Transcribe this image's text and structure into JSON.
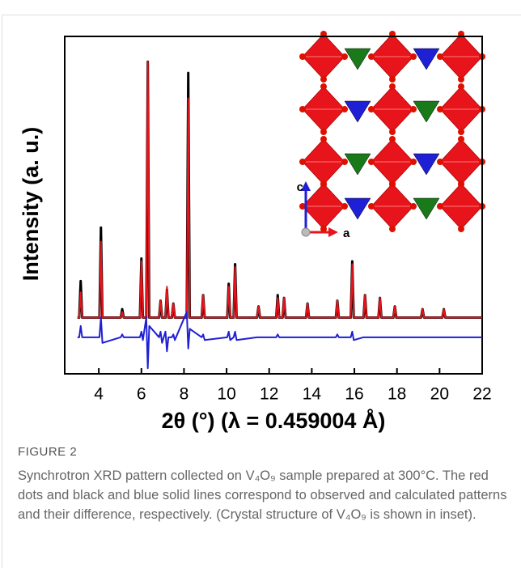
{
  "chart_data": {
    "type": "line",
    "y_label": "Intensity (a. u.)",
    "x_label": "2θ (°) (λ = 0.459004 Å)",
    "annotations": [
      "c",
      "a"
    ],
    "xlim": [
      2.4,
      22
    ],
    "ylim": [
      -20,
      100
    ],
    "xticks": [
      4,
      6,
      8,
      10,
      12,
      14,
      16,
      18,
      20,
      22
    ],
    "x": [
      3.0,
      3.08,
      3.15,
      3.22,
      4.03,
      4.1,
      4.17,
      5.03,
      5.1,
      5.17,
      5.93,
      6.0,
      6.07,
      6.23,
      6.3,
      6.37,
      6.83,
      6.9,
      6.97,
      7.13,
      7.2,
      7.27,
      7.43,
      7.5,
      7.57,
      8.13,
      8.2,
      8.27,
      8.83,
      8.9,
      8.97,
      10.03,
      10.1,
      10.17,
      10.33,
      10.4,
      10.47,
      11.43,
      11.5,
      11.57,
      12.33,
      12.4,
      12.47,
      12.63,
      12.7,
      12.77,
      13.73,
      13.8,
      13.87,
      15.13,
      15.2,
      15.27,
      15.83,
      15.9,
      15.97,
      16.43,
      16.5,
      16.57,
      17.13,
      17.2,
      17.27,
      17.83,
      17.9,
      17.97,
      19.13,
      19.2,
      19.27,
      20.13,
      20.2,
      20.27,
      22.0
    ],
    "series": [
      {
        "color": "#000000",
        "values": [
          0,
          0,
          13,
          0,
          0,
          32,
          0,
          0,
          3,
          0,
          0,
          21,
          0,
          0,
          91,
          0,
          0,
          6,
          0,
          0,
          10,
          0,
          0,
          5,
          0,
          0,
          87,
          0,
          0,
          8,
          0,
          0,
          12,
          0,
          0,
          19,
          0,
          0,
          4,
          0,
          0,
          8,
          0,
          0,
          7,
          0,
          0,
          5,
          0,
          0,
          6,
          0,
          0,
          20,
          0,
          0,
          8,
          0,
          0,
          7,
          0,
          0,
          4,
          0,
          0,
          3,
          0,
          0,
          3,
          0,
          0
        ]
      },
      {
        "color": "#e8141b",
        "values": [
          0,
          0,
          9,
          0,
          0,
          27,
          0,
          0,
          2,
          0,
          0,
          20,
          0,
          0,
          91,
          0,
          0,
          6,
          0,
          0,
          11,
          0,
          0,
          5,
          0,
          0,
          78,
          0,
          0,
          8,
          0,
          0,
          11,
          0,
          0,
          18,
          0,
          0,
          4,
          0,
          0,
          7,
          0,
          0,
          7,
          0,
          0,
          5,
          0,
          0,
          6,
          0,
          0,
          19,
          0,
          0,
          8,
          0,
          0,
          7,
          0,
          0,
          4,
          0,
          0,
          3,
          0,
          0,
          3,
          0,
          0
        ]
      },
      {
        "color": "#1f1fd6",
        "values": [
          -7,
          -7,
          -3,
          -7,
          -7,
          0,
          -9,
          -7,
          -6,
          -7,
          -7,
          -5,
          -8,
          0,
          -18,
          -3,
          -7,
          -5,
          -9,
          -5,
          -12,
          -7,
          -7,
          -6,
          -8,
          2,
          -11,
          -4,
          -7,
          -6,
          -8,
          -7,
          -5,
          -8,
          -7,
          -5,
          -8,
          -7,
          -7,
          -7,
          -7,
          -6,
          -7,
          -7,
          -7,
          -7,
          -7,
          -7,
          -7,
          -7,
          -6,
          -7,
          -7,
          -5,
          -8,
          -7,
          -7,
          -7,
          -7,
          -7,
          -7,
          -7,
          -7,
          -7,
          -7,
          -7,
          -7,
          -7,
          -7,
          -7,
          -7
        ]
      }
    ]
  },
  "figure": {
    "label": "FIGURE 2",
    "caption": "Synchrotron XRD pattern collected on V₄O₉ sample prepared at 300°C. The red dots and black and blue solid lines correspond to observed and calculated patterns and their difference, respectively. (Crystal structure of V₄O₉ is shown in inset)."
  }
}
